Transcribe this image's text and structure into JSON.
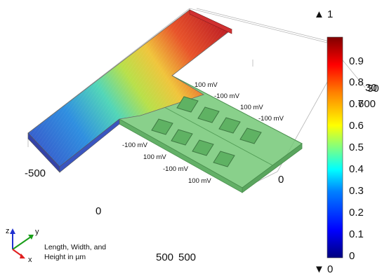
{
  "figure": {
    "voltage_labels": [
      "100 mV",
      "-100 mV",
      "100 mV",
      "-100 mV",
      "-100 mV",
      "100 mV",
      "-100 mV",
      "100 mV"
    ],
    "axis_ticks": {
      "left_back": "-500",
      "center": "0",
      "front_a": "500",
      "front_b": "500",
      "right_front": "0",
      "right_edge_a": "30",
      "right_edge_b": "30",
      "right_edge_c": "600"
    },
    "colorbar": {
      "max_label": "1",
      "min_label": "0",
      "ticks": [
        "0.9",
        "0.8",
        "0.7",
        "0.6",
        "0.5",
        "0.4",
        "0.3",
        "0.2",
        "0.1",
        "0"
      ],
      "colormap": [
        "#00007f",
        "#0000ff",
        "#0080ff",
        "#00ffff",
        "#80ff80",
        "#ffff00",
        "#ff8000",
        "#ff0000",
        "#800000"
      ]
    },
    "triad": {
      "z_label": "z",
      "y_label": "y",
      "x_label": "x",
      "caption_line1": "Length, Width, and",
      "caption_line2": "Height in µm",
      "x_color": "#e02020",
      "y_color": "#1a9e1a",
      "z_color": "#2030d0"
    }
  }
}
